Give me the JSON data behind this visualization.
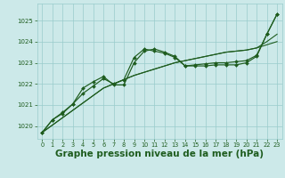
{
  "bg_color": "#cce9e9",
  "grid_color": "#99cccc",
  "line_color": "#1e5c1e",
  "marker_color": "#1e5c1e",
  "xlabel": "Graphe pression niveau de la mer (hPa)",
  "xlabel_fontsize": 7.5,
  "xlim": [
    -0.5,
    23.5
  ],
  "ylim": [
    1019.4,
    1025.8
  ],
  "yticks": [
    1020,
    1021,
    1022,
    1023,
    1024,
    1025
  ],
  "xticks": [
    0,
    1,
    2,
    3,
    4,
    5,
    6,
    7,
    8,
    9,
    10,
    11,
    12,
    13,
    14,
    15,
    16,
    17,
    18,
    19,
    20,
    21,
    22,
    23
  ],
  "series_linear1": [
    1019.7,
    1020.05,
    1020.4,
    1020.75,
    1021.1,
    1021.45,
    1021.8,
    1022.0,
    1022.2,
    1022.4,
    1022.55,
    1022.7,
    1022.85,
    1023.0,
    1023.1,
    1023.2,
    1023.3,
    1023.4,
    1023.5,
    1023.55,
    1023.6,
    1023.7,
    1023.85,
    1024.0
  ],
  "series_linear2": [
    1019.7,
    1020.05,
    1020.4,
    1020.75,
    1021.1,
    1021.45,
    1021.8,
    1022.0,
    1022.2,
    1022.4,
    1022.55,
    1022.7,
    1022.85,
    1023.0,
    1023.1,
    1023.2,
    1023.3,
    1023.4,
    1023.5,
    1023.55,
    1023.6,
    1023.7,
    1024.0,
    1024.35
  ],
  "series_main": [
    1019.7,
    1020.3,
    1020.6,
    1021.05,
    1021.55,
    1021.9,
    1022.25,
    1022.0,
    1022.2,
    1023.25,
    1023.65,
    1023.55,
    1023.45,
    1023.25,
    1022.85,
    1022.9,
    1022.95,
    1023.0,
    1023.0,
    1023.05,
    1023.1,
    1023.35,
    1024.35,
    1025.3
  ],
  "series_spike": [
    1019.7,
    1020.3,
    1020.65,
    1021.05,
    1021.8,
    1022.1,
    1022.35,
    1021.95,
    1021.95,
    1023.0,
    1023.55,
    1023.65,
    1023.5,
    1023.3,
    1022.85,
    1022.85,
    1022.85,
    1022.9,
    1022.9,
    1022.9,
    1023.0,
    1023.3,
    1024.35,
    1025.3
  ]
}
